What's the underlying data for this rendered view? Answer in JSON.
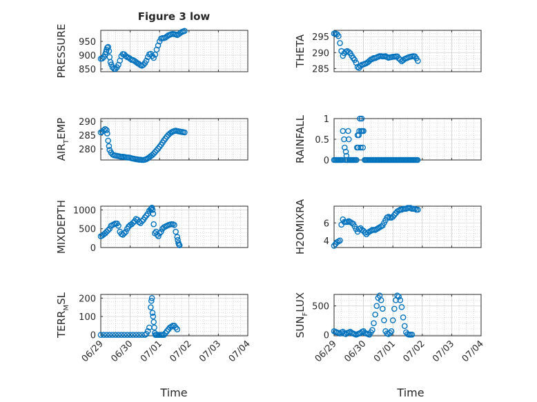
{
  "figure": {
    "title": "Figure 3 low",
    "x_time_label": "Time"
  },
  "colors": {
    "marker": "#0072BD",
    "axis": "#262626",
    "grid": "#b8b8b8"
  },
  "chart_data": [
    {
      "type": "scatter",
      "panel": "pressure",
      "ylabel": "PRESSURE",
      "sub": "",
      "yticks": [
        850,
        900,
        950
      ],
      "ylim": [
        840,
        990
      ],
      "x": [
        0,
        0.05,
        0.1,
        0.15,
        0.18,
        0.2,
        0.22,
        0.25,
        0.28,
        0.3,
        0.33,
        0.36,
        0.4,
        0.45,
        0.5,
        0.55,
        0.6,
        0.65,
        0.7,
        0.75,
        0.8,
        0.85,
        0.9,
        0.95,
        1.0,
        1.05,
        1.1,
        1.15,
        1.2,
        1.25,
        1.3,
        1.35,
        1.4,
        1.45,
        1.5,
        1.55,
        1.6,
        1.65,
        1.7,
        1.75,
        1.8,
        1.85,
        1.9,
        1.95,
        2.0,
        2.05,
        2.1,
        2.15,
        2.2,
        2.25,
        2.3,
        2.35,
        2.4,
        2.45,
        2.5,
        2.55,
        2.6,
        2.65,
        2.7,
        2.75,
        2.8,
        2.85
      ],
      "y": [
        887,
        888,
        893,
        903,
        912,
        920,
        927,
        930,
        915,
        893,
        875,
        866,
        856,
        851,
        850,
        856,
        865,
        880,
        896,
        904,
        903,
        897,
        893,
        891,
        887,
        883,
        882,
        879,
        875,
        871,
        868,
        864,
        862,
        865,
        871,
        880,
        893,
        903,
        905,
        897,
        890,
        902,
        920,
        935,
        950,
        960,
        962,
        962,
        964,
        968,
        972,
        974,
        976,
        977,
        976,
        975,
        973,
        976,
        980,
        984,
        986,
        988
      ]
    },
    {
      "type": "scatter",
      "panel": "theta",
      "ylabel": "THETA",
      "sub": "",
      "yticks": [
        285,
        290,
        295
      ],
      "ylim": [
        284,
        297
      ],
      "x": [
        0,
        0.05,
        0.1,
        0.15,
        0.2,
        0.25,
        0.3,
        0.35,
        0.4,
        0.45,
        0.5,
        0.55,
        0.6,
        0.65,
        0.7,
        0.75,
        0.8,
        0.85,
        0.9,
        0.95,
        1.0,
        1.05,
        1.1,
        1.15,
        1.2,
        1.25,
        1.3,
        1.35,
        1.4,
        1.45,
        1.5,
        1.55,
        1.6,
        1.65,
        1.7,
        1.75,
        1.8,
        1.85,
        1.9,
        1.95,
        2.0,
        2.05,
        2.1,
        2.15,
        2.2,
        2.25,
        2.3,
        2.35,
        2.4,
        2.45,
        2.5,
        2.55,
        2.6,
        2.65,
        2.7,
        2.75,
        2.8,
        2.85
      ],
      "y": [
        296,
        296,
        295.8,
        295.2,
        293,
        290.5,
        289,
        289.8,
        290.3,
        290.5,
        290.2,
        289.8,
        289,
        288.3,
        287.7,
        286.8,
        285.5,
        285.2,
        285.8,
        286.2,
        286.3,
        286.5,
        286.7,
        287,
        287.4,
        287.8,
        288,
        288.3,
        288.3,
        288.5,
        288.7,
        288.9,
        288.9,
        288.8,
        288.8,
        288.9,
        288.6,
        288.4,
        288.5,
        288.6,
        288.7,
        288.7,
        288.8,
        288.8,
        288.2,
        287.8,
        287.3,
        287.6,
        288,
        288.2,
        288.4,
        288.6,
        288.7,
        288.8,
        288.9,
        288.8,
        288.2,
        287.4
      ]
    },
    {
      "type": "scatter",
      "panel": "air_temp",
      "ylabel": "AIR",
      "sub": "T",
      "ylabel_tail": "EMP",
      "yticks": [
        280,
        285,
        290
      ],
      "ylim": [
        276,
        291
      ],
      "x": [
        0,
        0.05,
        0.1,
        0.15,
        0.2,
        0.22,
        0.25,
        0.28,
        0.3,
        0.35,
        0.4,
        0.45,
        0.5,
        0.55,
        0.6,
        0.65,
        0.7,
        0.75,
        0.8,
        0.85,
        0.9,
        0.95,
        1.0,
        1.05,
        1.1,
        1.15,
        1.2,
        1.25,
        1.3,
        1.35,
        1.4,
        1.45,
        1.5,
        1.55,
        1.6,
        1.65,
        1.7,
        1.75,
        1.8,
        1.85,
        1.9,
        1.95,
        2.0,
        2.05,
        2.1,
        2.15,
        2.2,
        2.25,
        2.3,
        2.35,
        2.4,
        2.45,
        2.5,
        2.55,
        2.6,
        2.65,
        2.7,
        2.75,
        2.8,
        2.85
      ],
      "y": [
        286,
        286.3,
        286.8,
        287.2,
        286.8,
        285.6,
        283,
        281,
        279.6,
        278.7,
        278,
        277.7,
        277.6,
        277.5,
        277.4,
        277.3,
        277.1,
        277.2,
        277.1,
        277,
        276.9,
        276.9,
        276.8,
        276.6,
        276.5,
        276.4,
        276.3,
        276.2,
        276.1,
        276.1,
        276,
        276,
        276.1,
        276.3,
        276.6,
        277,
        277.4,
        277.8,
        278.3,
        278.9,
        279.5,
        280.1,
        280.8,
        281.5,
        282.3,
        283.1,
        283.8,
        284.5,
        285.1,
        285.6,
        286,
        286.3,
        286.5,
        286.6,
        286.5,
        286.4,
        286.3,
        286.2,
        286.1,
        286
      ]
    },
    {
      "type": "scatter",
      "panel": "rainfall",
      "ylabel": "RAINFALL",
      "sub": "",
      "yticks": [
        0,
        0.5,
        1
      ],
      "ytick_labels": [
        "0",
        "0.5",
        "1"
      ],
      "ylim": [
        0,
        1
      ],
      "x": [
        0,
        0.04,
        0.08,
        0.12,
        0.16,
        0.2,
        0.24,
        0.28,
        0.3,
        0.34,
        0.36,
        0.38,
        0.4,
        0.42,
        0.44,
        0.46,
        0.48,
        0.5,
        0.52,
        0.56,
        0.6,
        0.64,
        0.68,
        0.72,
        0.76,
        0.78,
        0.8,
        0.82,
        0.84,
        0.86,
        0.88,
        0.9,
        0.92,
        0.94,
        0.96,
        0.98,
        1.0,
        1.04,
        1.08,
        1.12,
        1.16,
        1.2,
        1.24,
        1.28,
        1.32,
        1.36,
        1.4,
        1.44,
        1.48,
        1.52,
        1.56,
        1.6,
        1.64,
        1.68,
        1.72,
        1.76,
        1.8,
        1.84,
        1.88,
        1.92,
        1.96,
        2.0,
        2.04,
        2.08,
        2.12,
        2.16,
        2.2,
        2.24,
        2.28,
        2.32,
        2.36,
        2.4,
        2.44,
        2.48,
        2.52,
        2.56,
        2.6,
        2.64,
        2.68,
        2.72,
        2.76,
        2.8,
        2.84
      ],
      "y": [
        0,
        0,
        0,
        0,
        0,
        0,
        0,
        0,
        0.7,
        0.5,
        0.3,
        0,
        0.2,
        0.1,
        0,
        0,
        0.7,
        0.5,
        0,
        0,
        0,
        0,
        0,
        0,
        0,
        0.3,
        0.6,
        0.3,
        0.6,
        0.7,
        1,
        0.3,
        0.7,
        1,
        0.7,
        0.3,
        0.7,
        0,
        0,
        0,
        0,
        0,
        0,
        0,
        0,
        0,
        0,
        0,
        0,
        0,
        0,
        0,
        0,
        0,
        0,
        0,
        0,
        0,
        0,
        0,
        0,
        0,
        0,
        0,
        0,
        0,
        0,
        0,
        0,
        0,
        0,
        0,
        0,
        0,
        0,
        0,
        0,
        0,
        0,
        0,
        0,
        0,
        0
      ]
    },
    {
      "type": "scatter",
      "panel": "mixdepth",
      "ylabel": "MIXDEPTH",
      "sub": "",
      "yticks": [
        0,
        500,
        1000
      ],
      "ylim": [
        0,
        1100
      ],
      "x": [
        0,
        0.05,
        0.1,
        0.15,
        0.2,
        0.25,
        0.3,
        0.35,
        0.4,
        0.45,
        0.5,
        0.55,
        0.6,
        0.65,
        0.7,
        0.75,
        0.8,
        0.85,
        0.9,
        0.95,
        1.0,
        1.05,
        1.1,
        1.15,
        1.2,
        1.25,
        1.3,
        1.35,
        1.4,
        1.45,
        1.5,
        1.55,
        1.6,
        1.65,
        1.7,
        1.72,
        1.74,
        1.76,
        1.78,
        1.8,
        1.84,
        1.88,
        1.92,
        1.96,
        2.0,
        2.05,
        2.1,
        2.15,
        2.2,
        2.25,
        2.3,
        2.35,
        2.4,
        2.45,
        2.5,
        2.55,
        2.6,
        2.62,
        2.64,
        2.66,
        2.68
      ],
      "y": [
        300,
        320,
        350,
        380,
        420,
        460,
        500,
        580,
        600,
        620,
        640,
        640,
        580,
        420,
        360,
        340,
        380,
        420,
        500,
        560,
        600,
        620,
        660,
        700,
        760,
        740,
        680,
        650,
        700,
        740,
        800,
        850,
        900,
        980,
        1020,
        1040,
        1060,
        1000,
        900,
        620,
        380,
        420,
        340,
        300,
        380,
        420,
        500,
        540,
        560,
        580,
        600,
        610,
        620,
        620,
        600,
        420,
        280,
        200,
        120,
        80,
        60
      ]
    },
    {
      "type": "scatter",
      "panel": "h2omixra",
      "ylabel": "H2OMIXRA",
      "sub": "",
      "yticks": [
        4,
        6
      ],
      "ylim": [
        3.2,
        7.9
      ],
      "x": [
        0,
        0.05,
        0.1,
        0.15,
        0.2,
        0.25,
        0.3,
        0.35,
        0.4,
        0.45,
        0.5,
        0.55,
        0.6,
        0.65,
        0.7,
        0.75,
        0.8,
        0.85,
        0.9,
        0.95,
        1.0,
        1.05,
        1.1,
        1.15,
        1.2,
        1.25,
        1.3,
        1.35,
        1.4,
        1.45,
        1.5,
        1.55,
        1.6,
        1.65,
        1.7,
        1.75,
        1.8,
        1.85,
        1.9,
        1.95,
        2.0,
        2.05,
        2.1,
        2.15,
        2.2,
        2.25,
        2.3,
        2.35,
        2.4,
        2.45,
        2.5,
        2.55,
        2.6,
        2.65,
        2.7,
        2.75,
        2.8,
        2.85
      ],
      "y": [
        3.4,
        3.6,
        3.8,
        3.9,
        4.0,
        5.8,
        6.4,
        6.1,
        6.1,
        6.1,
        6.2,
        6.1,
        6.0,
        5.9,
        5.6,
        5.3,
        5.0,
        5.3,
        5.4,
        5.2,
        5.1,
        4.9,
        4.7,
        4.9,
        5.0,
        5.1,
        5.2,
        5.2,
        5.2,
        5.3,
        5.4,
        5.5,
        5.6,
        5.7,
        6.0,
        6.3,
        6.6,
        6.7,
        6.6,
        6.6,
        6.7,
        6.9,
        7.1,
        7.3,
        7.4,
        7.5,
        7.5,
        7.6,
        7.6,
        7.6,
        7.7,
        7.7,
        7.7,
        7.6,
        7.6,
        7.6,
        7.5,
        7.5
      ]
    },
    {
      "type": "scatter",
      "panel": "terr_msl",
      "ylabel": "TERR",
      "sub": "M",
      "ylabel_tail": "SL",
      "yticks": [
        0,
        100,
        200
      ],
      "ylim": [
        -5,
        220
      ],
      "x": [
        0,
        0.1,
        0.2,
        0.3,
        0.4,
        0.5,
        0.6,
        0.7,
        0.8,
        0.9,
        1.0,
        1.1,
        1.2,
        1.3,
        1.4,
        1.5,
        1.55,
        1.6,
        1.65,
        1.7,
        1.72,
        1.74,
        1.76,
        1.78,
        1.8,
        1.82,
        1.84,
        1.86,
        1.88,
        1.9,
        1.95,
        2.0,
        2.05,
        2.1,
        2.15,
        2.2,
        2.25,
        2.3,
        2.35,
        2.4,
        2.45,
        2.5,
        2.55,
        2.6
      ],
      "y": [
        0,
        0,
        0,
        0,
        0,
        0,
        0,
        0,
        0,
        0,
        0,
        0,
        0,
        0,
        0,
        0,
        5,
        20,
        40,
        150,
        185,
        200,
        120,
        100,
        70,
        40,
        10,
        0,
        0,
        0,
        0,
        0,
        0,
        0,
        0,
        10,
        20,
        30,
        40,
        45,
        50,
        50,
        40,
        30
      ]
    },
    {
      "type": "scatter",
      "panel": "sun_flux",
      "ylabel": "SUN",
      "sub": "F",
      "ylabel_tail": "LUX",
      "yticks": [
        0,
        500
      ],
      "ylim": [
        -20,
        700
      ],
      "x": [
        0,
        0.05,
        0.1,
        0.15,
        0.2,
        0.25,
        0.3,
        0.35,
        0.4,
        0.45,
        0.5,
        0.55,
        0.6,
        0.65,
        0.7,
        0.75,
        0.8,
        0.85,
        0.9,
        0.95,
        1.0,
        1.05,
        1.1,
        1.15,
        1.2,
        1.25,
        1.3,
        1.35,
        1.4,
        1.45,
        1.5,
        1.55,
        1.6,
        1.65,
        1.7,
        1.75,
        1.8,
        1.85,
        1.9,
        1.95,
        2.0,
        2.05,
        2.1,
        2.15,
        2.2,
        2.25,
        2.3,
        2.35,
        2.4,
        2.45,
        2.5,
        2.55,
        2.6,
        2.65
      ],
      "y": [
        60,
        50,
        40,
        30,
        20,
        40,
        50,
        20,
        10,
        30,
        40,
        50,
        30,
        20,
        10,
        0,
        10,
        20,
        30,
        50,
        60,
        30,
        20,
        10,
        0,
        40,
        80,
        200,
        350,
        500,
        640,
        680,
        600,
        450,
        250,
        60,
        20,
        10,
        30,
        60,
        250,
        450,
        600,
        680,
        660,
        600,
        480,
        300,
        150,
        40,
        10,
        0,
        0,
        0
      ]
    }
  ],
  "x_axis": {
    "ticks": [
      0,
      1,
      2,
      3,
      4,
      5
    ],
    "labels": [
      "06/29",
      "06/30",
      "07/01",
      "07/02",
      "07/03",
      "07/04"
    ],
    "xlim_days": [
      0,
      5
    ]
  }
}
